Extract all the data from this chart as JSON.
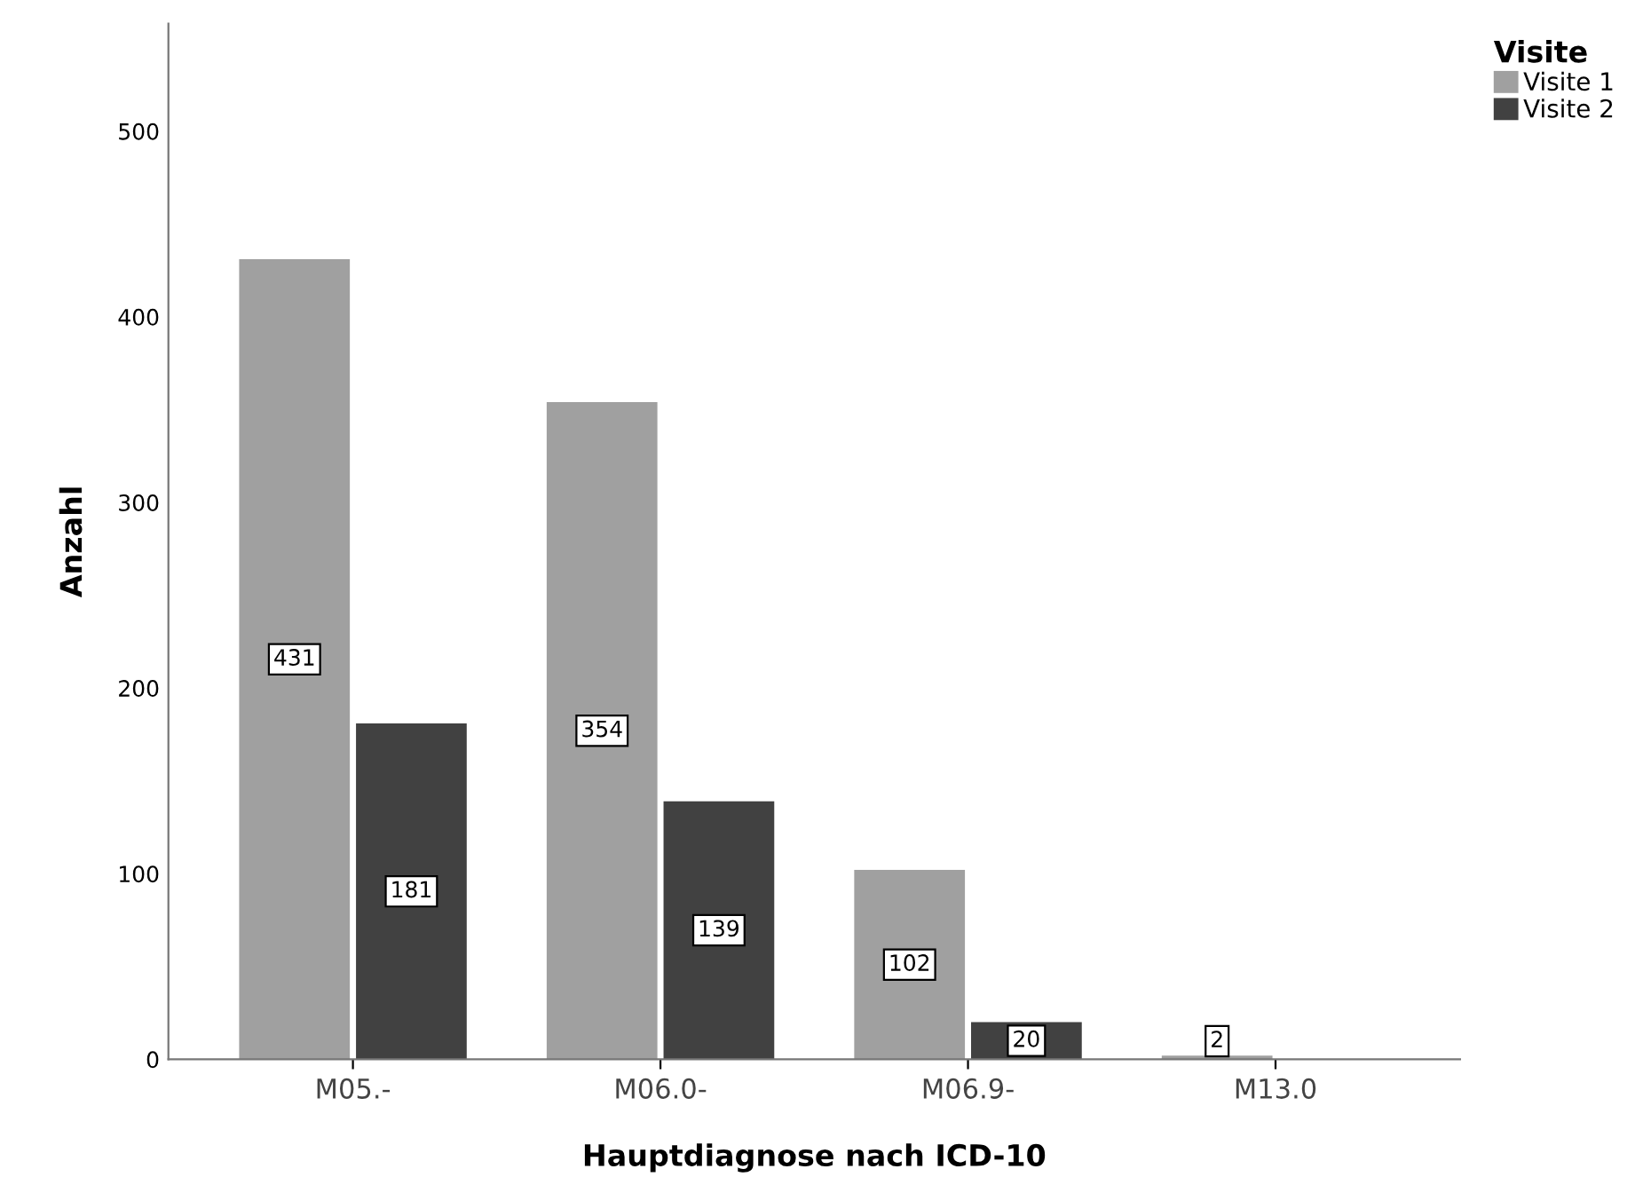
{
  "chart_data": {
    "type": "bar",
    "xlabel": "Hauptdiagnose nach ICD-10",
    "ylabel": "Anzahl",
    "legend_title": "Visite",
    "categories": [
      "M05.-",
      "M06.0-",
      "M06.9-",
      "M13.0"
    ],
    "series": [
      {
        "name": "Visite 1",
        "color": "#a0a0a0",
        "values": [
          431,
          354,
          102,
          2
        ]
      },
      {
        "name": "Visite 2",
        "color": "#414141",
        "values": [
          181,
          139,
          20,
          null
        ]
      }
    ],
    "ylim": [
      0,
      558
    ],
    "yticks": [
      0,
      100,
      200,
      300,
      400,
      500
    ],
    "data_labels": true,
    "grid": false,
    "legend": "top right"
  }
}
